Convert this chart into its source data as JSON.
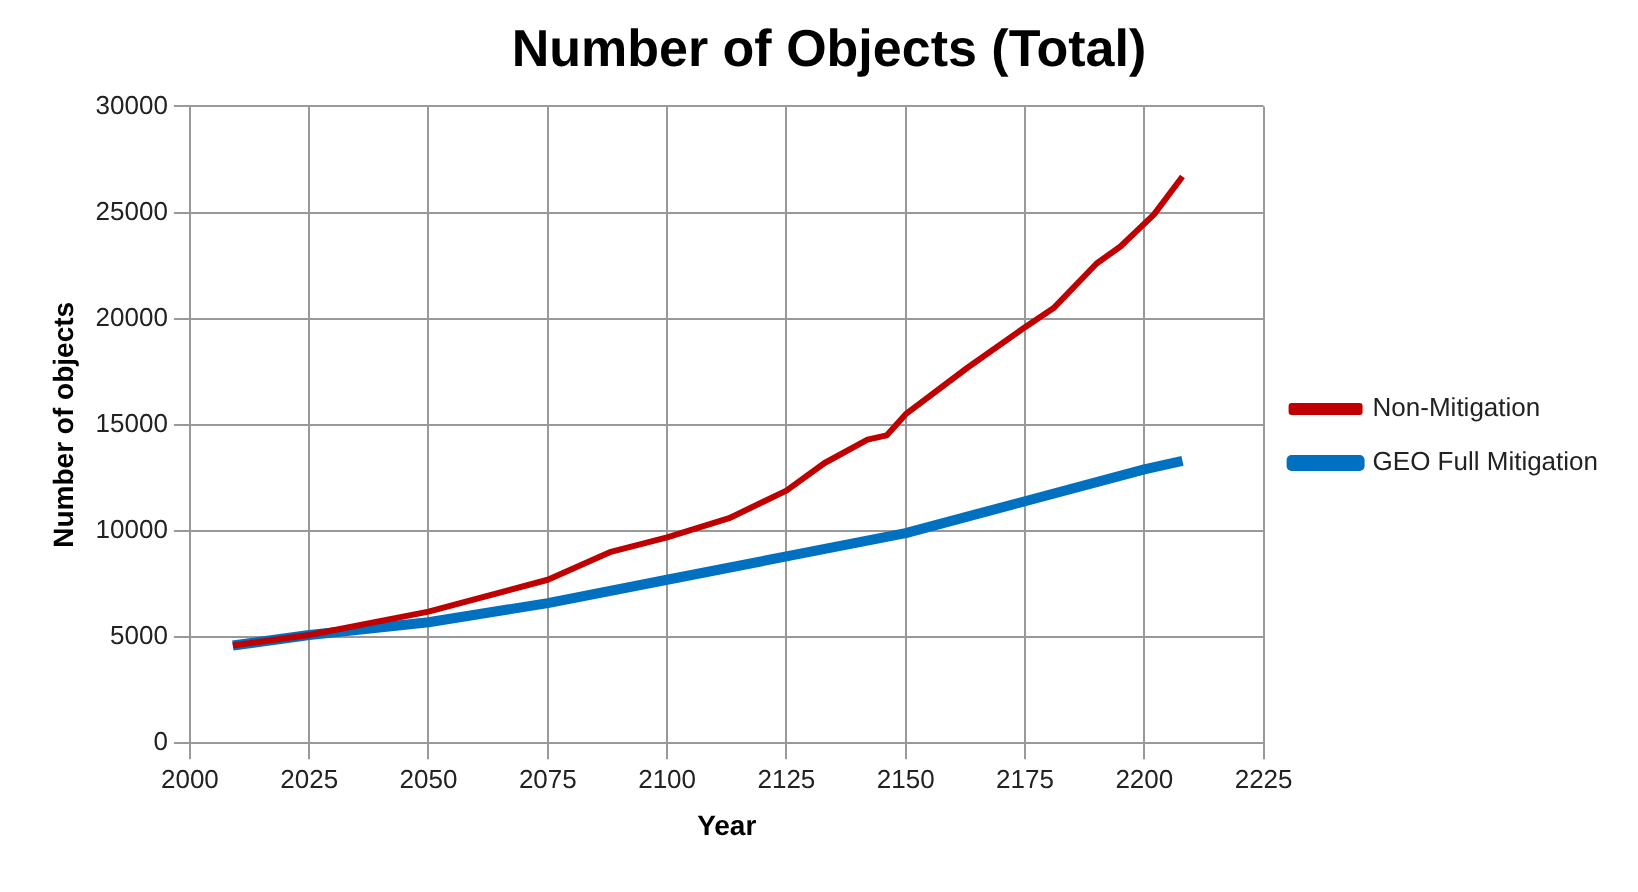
{
  "chart_data": {
    "type": "line",
    "title": "Number of Objects (Total)",
    "xlabel": "Year",
    "ylabel": "Number of objects",
    "xlim": [
      2000,
      2225
    ],
    "xticks": [
      2000,
      2025,
      2050,
      2075,
      2100,
      2125,
      2150,
      2175,
      2200,
      2225
    ],
    "ylim": [
      0,
      30000
    ],
    "yticks": [
      0,
      5000,
      10000,
      15000,
      20000,
      25000,
      30000
    ],
    "grid": true,
    "legend": "right",
    "marker": "none",
    "line_style": "solid",
    "series": [
      {
        "name": "GEO Full Mitigation",
        "color": "#0070c0",
        "x": [
          2009,
          2025,
          2050,
          2075,
          2100,
          2125,
          2150,
          2175,
          2200,
          2208
        ],
        "values": [
          4600,
          5100,
          5700,
          6600,
          7700,
          8800,
          9900,
          11400,
          12900,
          13300
        ]
      },
      {
        "name": "Non-Mitigation",
        "color": "#c00000",
        "x": [
          2009,
          2025,
          2050,
          2075,
          2088,
          2100,
          2113,
          2125,
          2133,
          2142,
          2146,
          2150,
          2163,
          2175,
          2181,
          2190,
          2195,
          2202,
          2208
        ],
        "values": [
          4600,
          5100,
          6200,
          7700,
          9000,
          9700,
          10600,
          11900,
          13200,
          14300,
          14500,
          15500,
          17700,
          19600,
          20500,
          22600,
          23400,
          24900,
          26700
        ]
      }
    ]
  }
}
